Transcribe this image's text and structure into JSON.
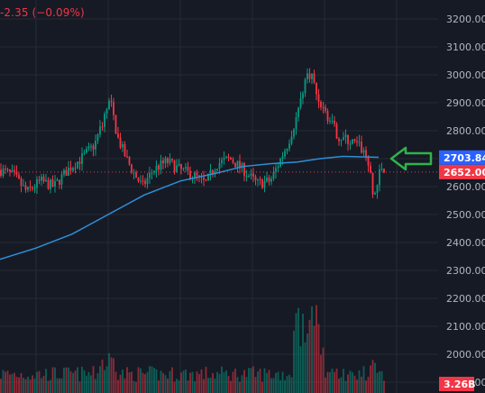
{
  "header": {
    "change_text": "-2.35 (−0.09%)"
  },
  "colors": {
    "background": "#161a25",
    "grid": "#262a35",
    "up": "#089981",
    "down": "#f23645",
    "ma_line": "#2f8fd6",
    "arrow": "#2fb34a",
    "axis_text": "#b2b5be"
  },
  "arrow_icon": "left-arrow-icon",
  "chart_data": {
    "type": "candlestick",
    "y_axis": {
      "ylim": [
        1890,
        3230
      ],
      "ticks": [
        "3200.00",
        "3100.00",
        "3000.00",
        "2900.00",
        "2800.00",
        "2700.00",
        "2600.00",
        "2500.00",
        "2400.00",
        "2300.00",
        "2200.00",
        "2100.00",
        "2000.00",
        "1900.00"
      ]
    },
    "price_labels": [
      {
        "text": "2703.84",
        "value": 2703.84,
        "color": "#2962ff"
      },
      {
        "text": "2652.00",
        "value": 2652.0,
        "color": "#f23645"
      }
    ],
    "volume_label": {
      "text": "3.26B",
      "color": "#f23645"
    },
    "moving_average_shape": [
      [
        0,
        2340
      ],
      [
        40,
        2380
      ],
      [
        80,
        2430
      ],
      [
        120,
        2500
      ],
      [
        160,
        2570
      ],
      [
        200,
        2620
      ],
      [
        240,
        2648
      ],
      [
        270,
        2672
      ],
      [
        300,
        2682
      ],
      [
        330,
        2688
      ],
      [
        355,
        2700
      ],
      [
        380,
        2708
      ],
      [
        420,
        2705
      ]
    ],
    "price_shape": [
      [
        0,
        2660
      ],
      [
        15,
        2640
      ],
      [
        30,
        2580
      ],
      [
        45,
        2620
      ],
      [
        60,
        2600
      ],
      [
        75,
        2660
      ],
      [
        90,
        2700
      ],
      [
        105,
        2750
      ],
      [
        115,
        2840
      ],
      [
        122,
        2910
      ],
      [
        130,
        2780
      ],
      [
        140,
        2700
      ],
      [
        150,
        2640
      ],
      [
        158,
        2600
      ],
      [
        170,
        2660
      ],
      [
        185,
        2690
      ],
      [
        200,
        2660
      ],
      [
        215,
        2640
      ],
      [
        228,
        2610
      ],
      [
        240,
        2680
      ],
      [
        255,
        2700
      ],
      [
        270,
        2660
      ],
      [
        285,
        2610
      ],
      [
        300,
        2620
      ],
      [
        310,
        2690
      ],
      [
        320,
        2760
      ],
      [
        330,
        2860
      ],
      [
        338,
        2980
      ],
      [
        345,
        3010
      ],
      [
        352,
        2920
      ],
      [
        362,
        2860
      ],
      [
        375,
        2780
      ],
      [
        390,
        2760
      ],
      [
        400,
        2740
      ],
      [
        408,
        2700
      ],
      [
        414,
        2560
      ],
      [
        418,
        2600
      ],
      [
        422,
        2660
      ],
      [
        426,
        2652
      ]
    ]
  }
}
